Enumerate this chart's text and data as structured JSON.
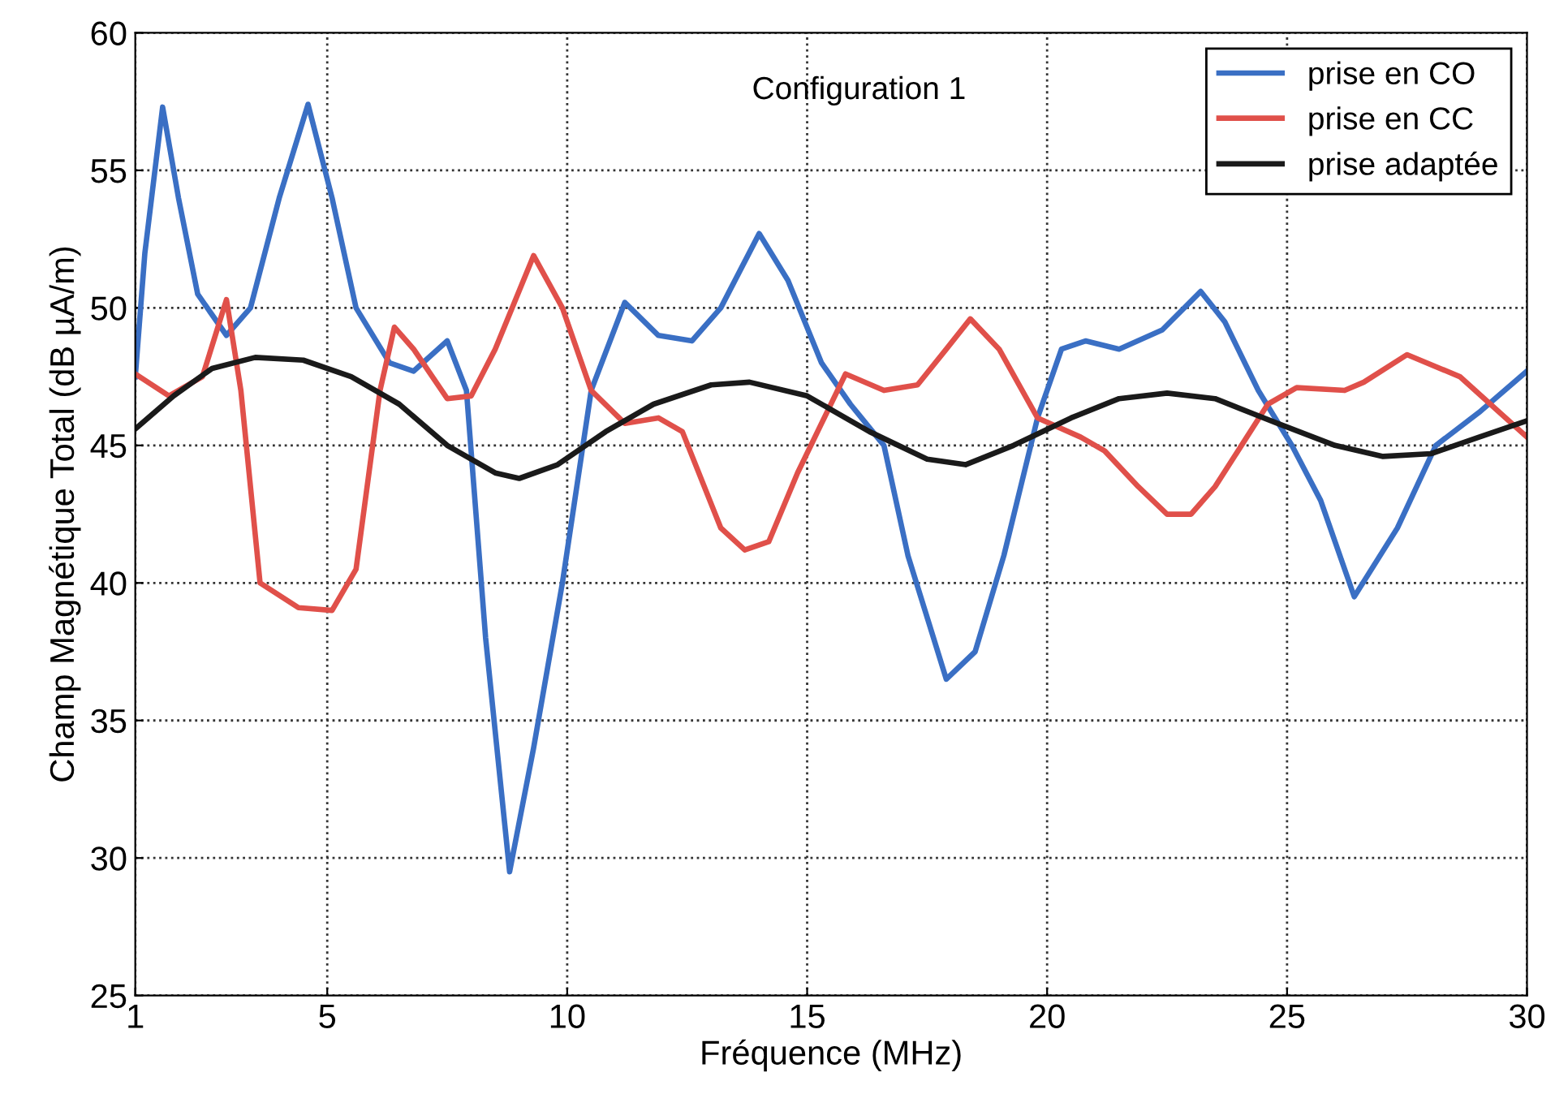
{
  "chart_data": {
    "type": "line",
    "xlabel": "Fréquence (MHz)",
    "ylabel": "Champ Magnétique Total (dB µA/m)",
    "annotations": [
      "Configuration 1"
    ],
    "xlim": [
      1,
      30
    ],
    "xticks": [
      1,
      5,
      10,
      15,
      20,
      25,
      30
    ],
    "ylim": [
      25,
      60
    ],
    "yticks": [
      25,
      30,
      35,
      40,
      45,
      50,
      55,
      60
    ],
    "grid": true,
    "legend": "top right",
    "line_style": "solid",
    "marker": "none",
    "series": [
      {
        "name": "prise en CO",
        "color": "#3a6fc4",
        "x": [
          1,
          1.2,
          1.57,
          1.9,
          2.3,
          2.9,
          3.4,
          4.0,
          4.6,
          5.1,
          5.6,
          6.3,
          6.8,
          7.5,
          7.9,
          8.3,
          8.8,
          9.3,
          9.9,
          10.5,
          11.2,
          11.9,
          12.6,
          13.2,
          14.0,
          14.6,
          15.3,
          15.9,
          16.6,
          17.1,
          17.9,
          18.5,
          19.1,
          19.8,
          20.3,
          20.8,
          21.5,
          22.4,
          23.2,
          23.7,
          24.4,
          25.1,
          25.7,
          26.4,
          27.3,
          28.1,
          29.0,
          30
        ],
        "values": [
          47.5,
          52,
          57.3,
          54,
          50.5,
          49,
          50,
          54,
          57.4,
          54,
          50,
          48,
          47.7,
          48.8,
          47,
          38,
          29.5,
          34,
          40,
          47,
          50.2,
          49,
          48.8,
          50,
          52.7,
          51,
          48,
          46.5,
          45,
          41,
          36.5,
          37.5,
          41,
          46,
          48.5,
          48.8,
          48.5,
          49.2,
          50.6,
          49.5,
          47,
          45,
          43,
          39.5,
          42,
          45,
          46.2,
          47.7
        ]
      },
      {
        "name": "prise en CC",
        "color": "#e0504a",
        "x": [
          1,
          1.7,
          2.4,
          2.9,
          3.2,
          3.6,
          4.4,
          5.1,
          5.6,
          6.1,
          6.4,
          6.8,
          7.5,
          8.0,
          8.5,
          9.3,
          9.9,
          10.5,
          11.2,
          11.9,
          12.4,
          13.2,
          13.7,
          14.2,
          14.8,
          15.8,
          16.6,
          17.3,
          17.9,
          18.4,
          19.0,
          19.8,
          20.7,
          21.2,
          21.9,
          22.5,
          23.0,
          23.5,
          24.6,
          25.2,
          26.2,
          26.6,
          27.5,
          28.6,
          30
        ],
        "values": [
          47.6,
          46.8,
          47.5,
          50.3,
          47,
          40,
          39.1,
          39,
          40.5,
          47,
          49.3,
          48.5,
          46.7,
          46.8,
          48.5,
          51.9,
          50,
          47,
          45.8,
          46,
          45.5,
          42,
          41.2,
          41.5,
          44,
          47.6,
          47,
          47.2,
          48.5,
          49.6,
          48.5,
          46,
          45.3,
          44.8,
          43.5,
          42.5,
          42.5,
          43.5,
          46.5,
          47.1,
          47,
          47.3,
          48.3,
          47.5,
          45.3
        ]
      },
      {
        "name": "prise adaptée",
        "color": "#1a1a1a",
        "x": [
          1,
          1.8,
          2.6,
          3.5,
          4.5,
          5.5,
          6.5,
          7.5,
          8.5,
          9,
          9.8,
          10.8,
          11.8,
          13,
          13.8,
          15,
          16.3,
          17.5,
          18.3,
          19.3,
          20.5,
          21.5,
          22.5,
          23.5,
          24.8,
          26,
          27,
          28,
          29,
          30
        ],
        "values": [
          45.6,
          46.8,
          47.8,
          48.2,
          48.1,
          47.5,
          46.5,
          45,
          44,
          43.8,
          44.3,
          45.5,
          46.5,
          47.2,
          47.3,
          46.8,
          45.5,
          44.5,
          44.3,
          45,
          46,
          46.7,
          46.9,
          46.7,
          45.8,
          45,
          44.6,
          44.7,
          45.3,
          45.9
        ]
      }
    ]
  }
}
